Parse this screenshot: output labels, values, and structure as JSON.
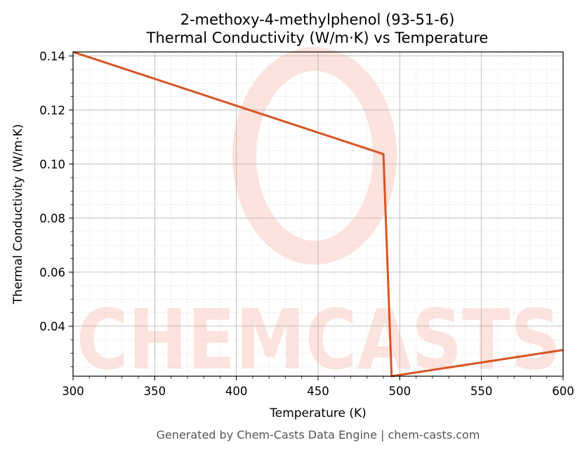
{
  "chart_data": {
    "type": "line",
    "title_line1": "2-methoxy-4-methylphenol (93-51-6)",
    "title_line2": "Thermal Conductivity (W/m·K) vs Temperature",
    "xlabel": "Temperature (K)",
    "ylabel": "Thermal Conductivity (W/m·K)",
    "xlim": [
      300,
      600
    ],
    "ylim": [
      0.0215,
      0.1415
    ],
    "xticks": [
      300,
      350,
      400,
      450,
      500,
      550,
      600
    ],
    "yticks": [
      0.04,
      0.06,
      0.08,
      0.1,
      0.12,
      0.14
    ],
    "grid": true,
    "series": [
      {
        "color": "#d95323",
        "x": [
          300,
          490,
          495,
          600
        ],
        "y": [
          0.1415,
          0.1037,
          0.0215,
          0.0312
        ]
      }
    ]
  },
  "footer": "Generated by Chem-Casts Data Engine | chem-casts.com",
  "watermark": "CHEMCASTS",
  "colors": {
    "line": "#d95323",
    "watermark": "#fde3dd",
    "grid_major": "#b0b0b0",
    "grid_minor": "#dcdcdc"
  }
}
